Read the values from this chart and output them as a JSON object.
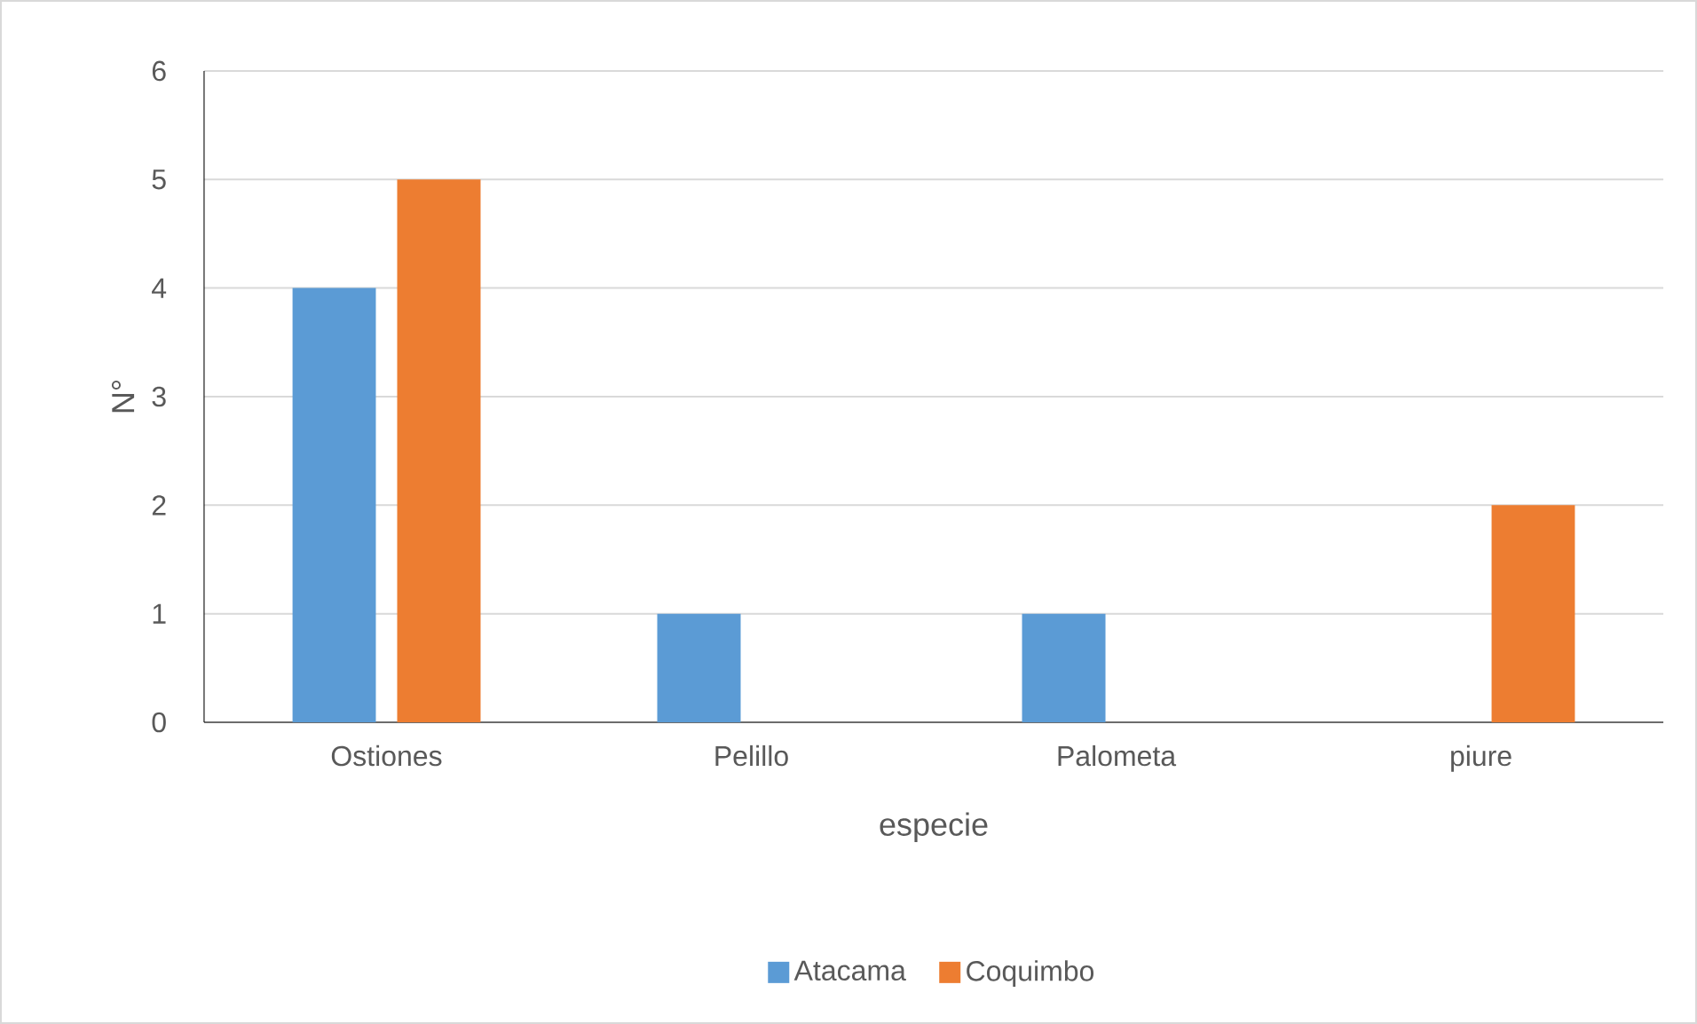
{
  "chart_data": {
    "type": "bar",
    "xlabel": "especie",
    "ylabel": "N°",
    "categories": [
      "Ostiones",
      "Pelillo",
      "Palometa",
      "piure"
    ],
    "series": [
      {
        "name": "Atacama",
        "color": "#5b9bd5",
        "values": [
          4,
          1,
          1,
          0
        ]
      },
      {
        "name": "Coquimbo",
        "color": "#ed7d31",
        "values": [
          5,
          0,
          0,
          2
        ]
      }
    ],
    "ylim": [
      0,
      6
    ],
    "yticks": [
      0,
      1,
      2,
      3,
      4,
      5,
      6
    ],
    "grid": "y",
    "legend": "bottom"
  }
}
